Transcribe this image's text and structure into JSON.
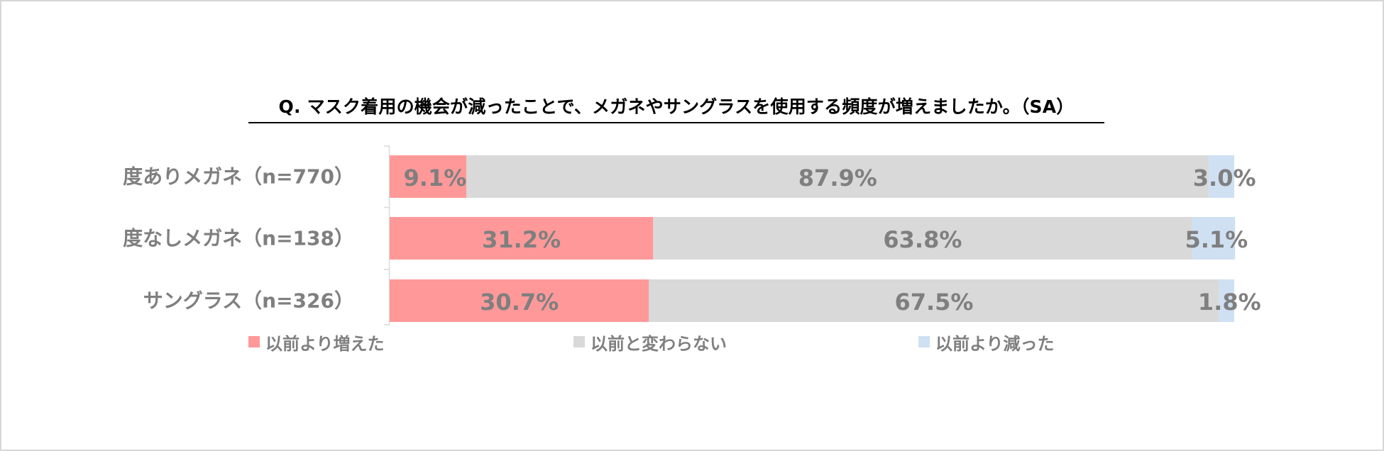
{
  "chart_data": {
    "type": "bar",
    "orientation": "horizontal",
    "stacked": "percent",
    "title": "Q. マスク着用の機会が減ったことで、メガネやサングラスを使用する頻度が増えましたか。（SA）",
    "categories": [
      "度ありメガネ（n=770）",
      "度なしメガネ（n=138）",
      "サングラス（n=326）"
    ],
    "series": [
      {
        "name": "以前より増えた",
        "color": "#ff9999",
        "values": [
          9.1,
          31.2,
          30.7
        ],
        "labels": [
          "9.1%",
          "31.2%",
          "30.7%"
        ]
      },
      {
        "name": "以前と変わらない",
        "color": "#d9d9d9",
        "values": [
          87.9,
          63.8,
          67.5
        ],
        "labels": [
          "87.9%",
          "63.8%",
          "67.5%"
        ]
      },
      {
        "name": "以前より減った",
        "color": "#cfe0f3",
        "values": [
          3.0,
          5.1,
          1.8
        ],
        "labels": [
          "3.0%",
          "5.1%",
          "1.8%"
        ]
      }
    ],
    "xlim": [
      0,
      100
    ],
    "legend_position": "bottom",
    "grid": false
  },
  "colors": {
    "label_text": "#7f7f7f",
    "axis_line": "#d9d9d9"
  }
}
